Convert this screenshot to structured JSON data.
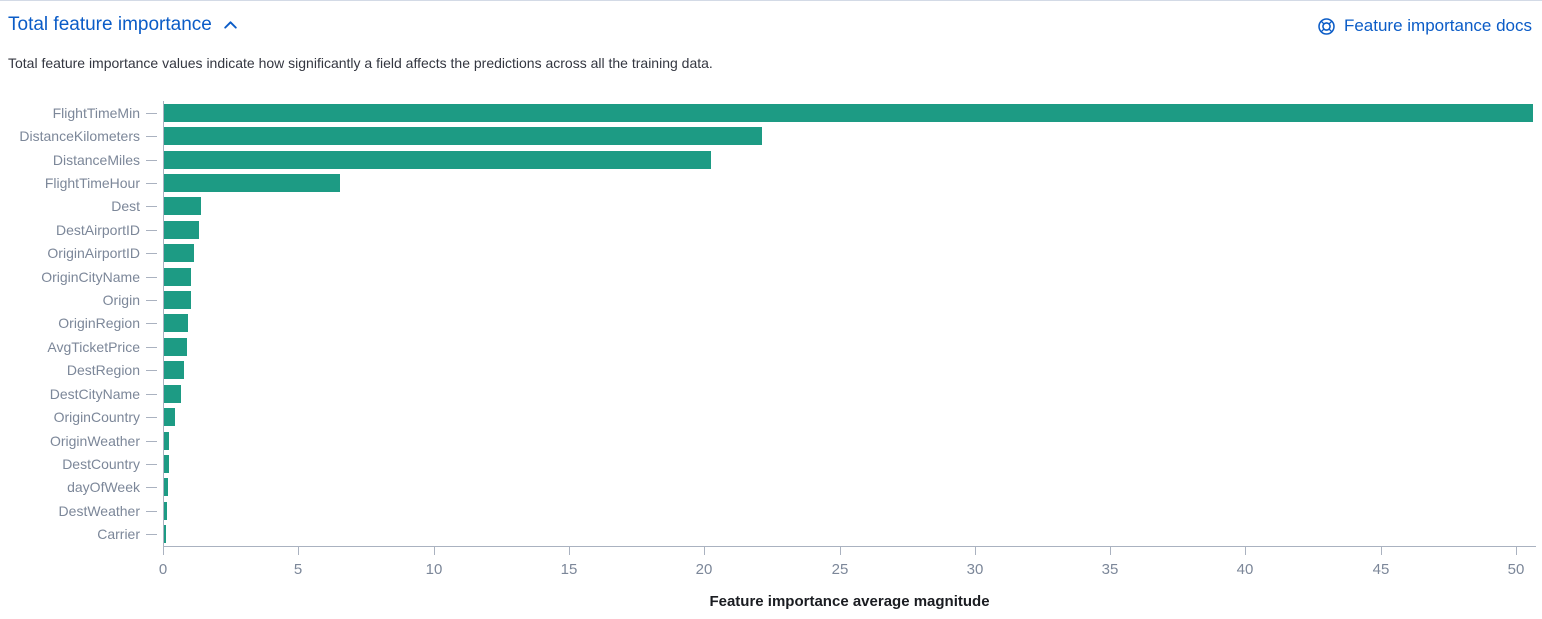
{
  "header": {
    "title": "Total feature importance",
    "collapse_icon": "chevron-up-icon",
    "docs_link_label": "Feature importance docs",
    "docs_link_icon": "help-docs-icon"
  },
  "description": "Total feature importance values indicate how significantly a field affects the predictions across all the training data.",
  "chart_data": {
    "type": "bar",
    "orientation": "horizontal",
    "categories": [
      "FlightTimeMin",
      "DistanceKilometers",
      "DistanceMiles",
      "FlightTimeHour",
      "Dest",
      "DestAirportID",
      "OriginAirportID",
      "OriginCityName",
      "Origin",
      "OriginRegion",
      "AvgTicketPrice",
      "DestRegion",
      "DestCityName",
      "OriginCountry",
      "OriginWeather",
      "DestCountry",
      "dayOfWeek",
      "DestWeather",
      "Carrier"
    ],
    "values": [
      50.6,
      22.1,
      20.2,
      6.5,
      1.35,
      1.3,
      1.1,
      1.0,
      0.98,
      0.9,
      0.85,
      0.73,
      0.62,
      0.41,
      0.19,
      0.18,
      0.15,
      0.12,
      0.05
    ],
    "xticks": [
      0,
      5,
      10,
      15,
      20,
      25,
      30,
      35,
      40,
      45,
      50
    ],
    "xlim": [
      0,
      50.7
    ],
    "xlabel": "Feature importance average magnitude",
    "ylabel": "",
    "title": "",
    "grid": false,
    "legend": "none",
    "bar_color": "#1d9b84"
  },
  "colors": {
    "accent_blue": "#0b5cc7",
    "bar_teal": "#1d9b84",
    "axis_line": "#aab2c0",
    "axis_label_gray": "#7c8799",
    "text_dark": "#343741",
    "panel_border": "#d3dae6"
  }
}
